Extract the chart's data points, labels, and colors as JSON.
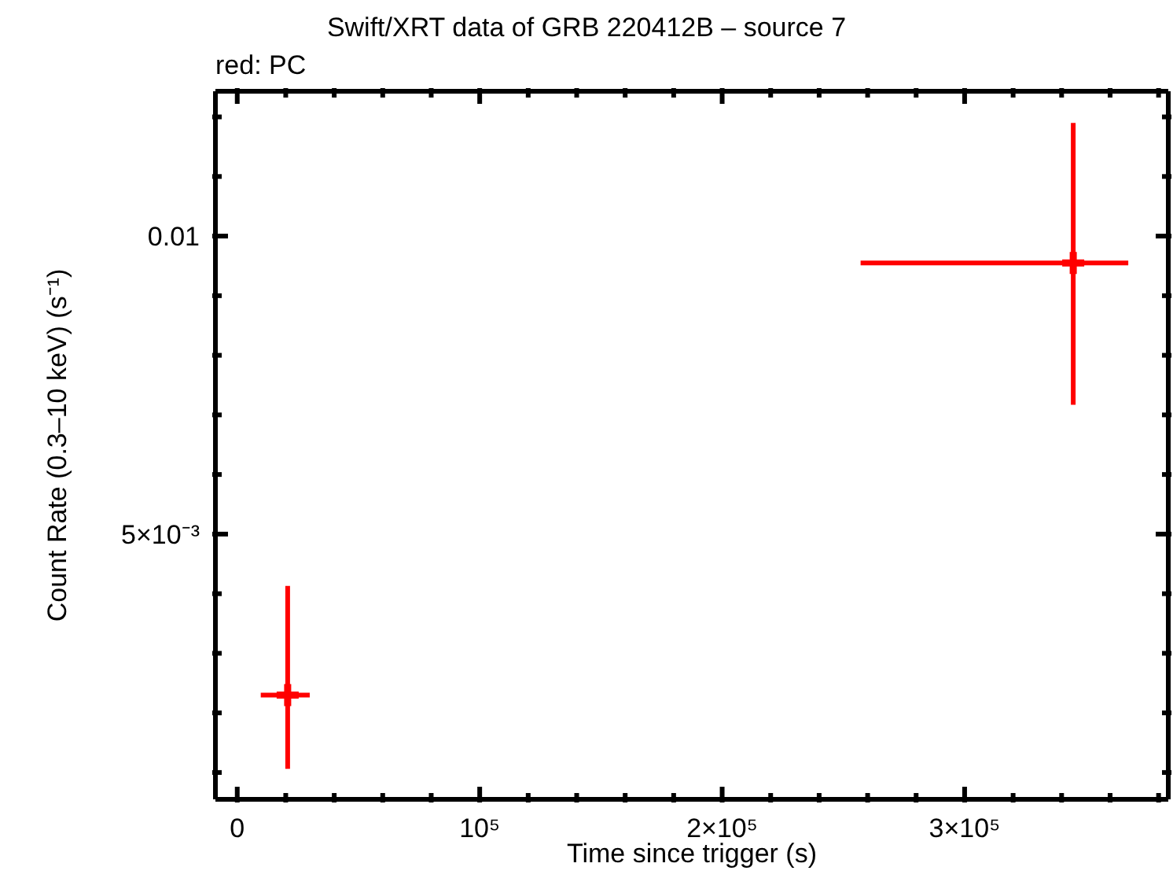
{
  "chart_data": {
    "type": "scatter",
    "title": "Swift/XRT data of GRB 220412B – source 7",
    "subtitle": "red: PC",
    "xlabel": "Time since trigger (s)",
    "ylabel": "Count Rate (0.3–10 keV) (s⁻¹)",
    "x": [
      20800,
      344800
    ],
    "series": [
      {
        "color": "#ff0000",
        "values": [
          0.0023,
          0.00955
        ],
        "errors": [
          [
            0.00106,
            0.00413
          ],
          [
            0.00717,
            0.0119
          ]
        ],
        "xerrors": [
          [
            9700,
            29900
          ],
          [
            257100,
            367500
          ]
        ]
      }
    ],
    "marker": "cross",
    "xlim": [
      -9000,
      384000
    ],
    "ylim": [
      0.00055,
      0.01243
    ],
    "xticks": [
      0,
      {
        "value": 20000,
        "label": null
      },
      {
        "value": 40000,
        "label": null
      },
      {
        "value": 60000,
        "label": null
      },
      {
        "value": 80000,
        "label": null
      },
      {
        "value": 100000,
        "label": "10⁵"
      },
      {
        "value": 120000,
        "label": null
      },
      {
        "value": 140000,
        "label": null
      },
      {
        "value": 160000,
        "label": null
      },
      {
        "value": 180000,
        "label": null
      },
      {
        "value": 200000,
        "label": "2×10⁵"
      },
      {
        "value": 220000,
        "label": null
      },
      {
        "value": 240000,
        "label": null
      },
      {
        "value": 260000,
        "label": null
      },
      {
        "value": 280000,
        "label": null
      },
      {
        "value": 300000,
        "label": "3×10⁵"
      },
      {
        "value": 320000,
        "label": null
      },
      {
        "value": 340000,
        "label": null
      },
      {
        "value": 360000,
        "label": null
      },
      {
        "value": 380000,
        "label": null
      }
    ],
    "yticks": [
      {
        "value": 0.001,
        "label": null
      },
      {
        "value": 0.002,
        "label": null
      },
      {
        "value": 0.003,
        "label": null
      },
      {
        "value": 0.004,
        "label": null
      },
      {
        "value": 0.005,
        "label": "5×10⁻³"
      },
      {
        "value": 0.006,
        "label": null
      },
      {
        "value": 0.007,
        "label": null
      },
      {
        "value": 0.008,
        "label": null
      },
      {
        "value": 0.009,
        "label": null
      },
      0.01,
      {
        "value": 0.011,
        "label": null
      },
      {
        "value": 0.012,
        "label": null
      }
    ]
  }
}
